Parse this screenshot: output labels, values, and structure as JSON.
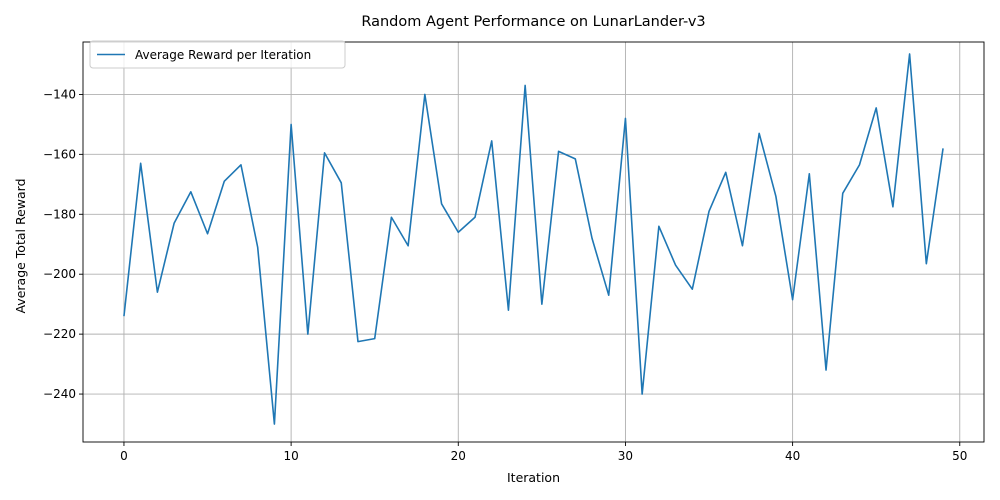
{
  "chart_data": {
    "type": "line",
    "title": "Random Agent Performance on LunarLander-v3",
    "xlabel": "Iteration",
    "ylabel": "Average Total Reward",
    "xlim": [
      -2.45,
      51.45
    ],
    "ylim": [
      -256,
      -122.5
    ],
    "xticks": [
      0,
      10,
      20,
      30,
      40,
      50
    ],
    "yticks": [
      -240,
      -220,
      -200,
      -180,
      -160,
      -140
    ],
    "grid": true,
    "legend_position": "top-left",
    "series": [
      {
        "name": "Average Reward per Iteration",
        "color": "#1f77b4",
        "x": [
          0,
          1,
          2,
          3,
          4,
          5,
          6,
          7,
          8,
          9,
          10,
          11,
          12,
          13,
          14,
          15,
          16,
          17,
          18,
          19,
          20,
          21,
          22,
          23,
          24,
          25,
          26,
          27,
          28,
          29,
          30,
          31,
          32,
          33,
          34,
          35,
          36,
          37,
          38,
          39,
          40,
          41,
          42,
          43,
          44,
          45,
          46,
          47,
          48,
          49
        ],
        "y": [
          -214,
          -163,
          -206,
          -183,
          -172.5,
          -186.5,
          -169,
          -163.5,
          -191,
          -250,
          -150,
          -220,
          -159.5,
          -169.5,
          -222.5,
          -221.5,
          -181,
          -190.5,
          -140,
          -176.5,
          -186,
          -181,
          -155.5,
          -212,
          -137,
          -210,
          -159,
          -161.5,
          -188,
          -207,
          -148,
          -240,
          -184,
          -197,
          -205,
          -179,
          -166,
          -190.5,
          -153,
          -174,
          -208.5,
          -166.5,
          -232,
          -173,
          -163.5,
          -144.5,
          -177.5,
          -126.5,
          -196.5,
          -158
        ]
      }
    ]
  }
}
